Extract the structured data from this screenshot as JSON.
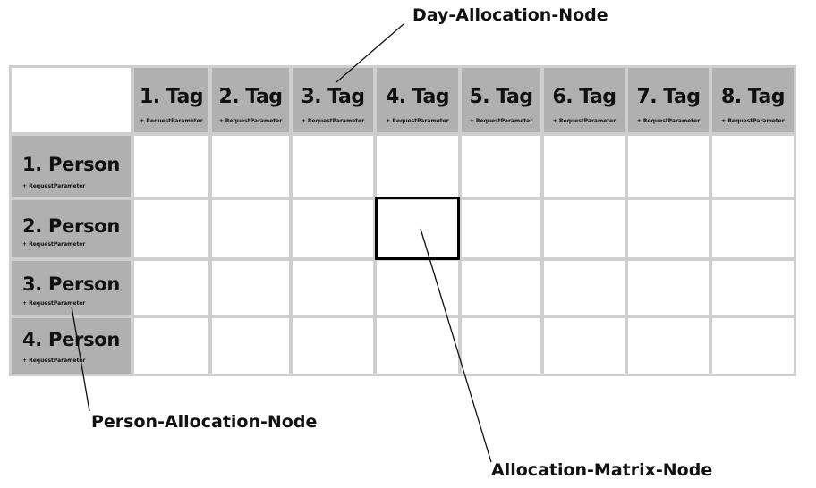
{
  "columns": [
    {
      "title": "1. Tag",
      "subtitle": "+ RequestParameter"
    },
    {
      "title": "2. Tag",
      "subtitle": "+ RequestParameter"
    },
    {
      "title": "3. Tag",
      "subtitle": "+ RequestParameter"
    },
    {
      "title": "4. Tag",
      "subtitle": "+ RequestParameter"
    },
    {
      "title": "5. Tag",
      "subtitle": "+ RequestParameter"
    },
    {
      "title": "6. Tag",
      "subtitle": "+ RequestParameter"
    },
    {
      "title": "7. Tag",
      "subtitle": "+ RequestParameter"
    },
    {
      "title": "8. Tag",
      "subtitle": "+ RequestParameter"
    }
  ],
  "rows": [
    {
      "title": "1. Person",
      "subtitle": "+ RequestParameter"
    },
    {
      "title": "2. Person",
      "subtitle": "+ RequestParameter"
    },
    {
      "title": "3. Person",
      "subtitle": "+ RequestParameter"
    },
    {
      "title": "4. Person",
      "subtitle": "+ RequestParameter"
    }
  ],
  "annotations": {
    "day_node": "Day-Allocation-Node",
    "person_node": "Person-Allocation-Node",
    "matrix_node": "Allocation-Matrix-Node"
  },
  "colors": {
    "header_fill": "#b0b0b0",
    "grid_line": "#cfcfcf",
    "highlight_border": "#000000"
  }
}
